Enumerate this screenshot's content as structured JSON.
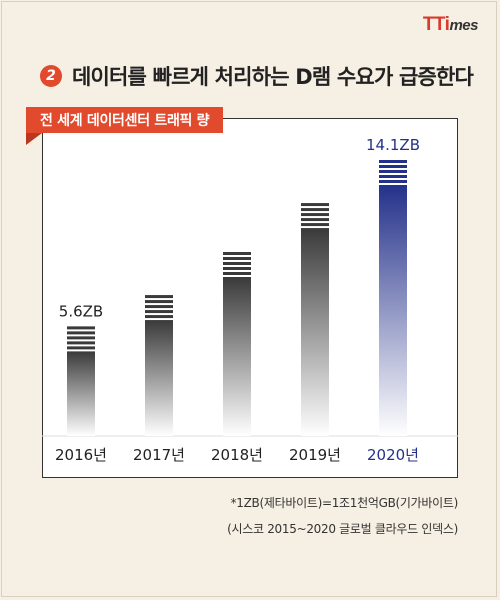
{
  "brand": {
    "logo_main": "TTi",
    "logo_small": "mes"
  },
  "headline": {
    "number": "2",
    "text": "데이터를 빠르게 처리하는 D램 수요가 급증한다"
  },
  "chart_data": {
    "type": "bar",
    "title": "전 세계 데이터센터 트래픽 량",
    "categories": [
      "2016년",
      "2017년",
      "2018년",
      "2019년",
      "2020년"
    ],
    "values": [
      5.6,
      7.2,
      9.4,
      11.9,
      14.1
    ],
    "data_labels": [
      "5.6ZB",
      "",
      "",
      "",
      "14.1ZB"
    ],
    "unit": "ZB",
    "highlight_index": 4,
    "highlight_color": "#24318a",
    "bar_color": "#3a3a3a",
    "ylim": [
      0,
      14.1
    ]
  },
  "footnote": {
    "line1": "*1ZB(제타바이트)=1조1천억GB(기가바이트)",
    "line2": "(시스코 2015~2020 글로벌 클라우드 인덱스)"
  }
}
